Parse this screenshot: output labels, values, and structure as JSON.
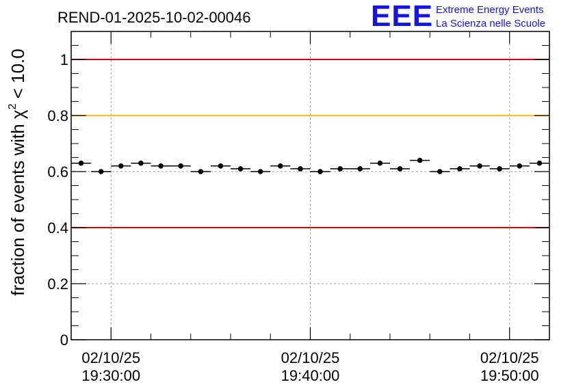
{
  "chart_data": {
    "type": "scatter",
    "title": "REND-01-2025-10-02-00046",
    "ylabel_prefix": "fraction of events with ",
    "ylabel_chi": "χ",
    "ylabel_sup": "2",
    "ylabel_suffix": " < 10.0",
    "xlabel": "",
    "x_minutes_range": [
      -7.0,
      17.0
    ],
    "ylim": [
      0,
      1.1
    ],
    "grid": true,
    "y_ticks": [
      0,
      0.2,
      0.4,
      0.6,
      0.8,
      1
    ],
    "y_tick_labels": [
      "0",
      "0.2",
      "0.4",
      "0.6",
      "0.8",
      "1"
    ],
    "x_ticks": [
      {
        "minute": -5,
        "date": "02/10/25",
        "time": "19:30:00"
      },
      {
        "minute": 5,
        "date": "02/10/25",
        "time": "19:40:00"
      },
      {
        "minute": 15,
        "date": "02/10/25",
        "time": "19:50:00"
      }
    ],
    "x_minor_minutes": [
      -3,
      -1,
      1,
      3,
      7,
      9,
      11,
      13
    ],
    "reference_lines": [
      {
        "y": 1.0,
        "color": "#dd0000"
      },
      {
        "y": 0.8,
        "color": "#ffc000"
      },
      {
        "y": 0.4,
        "color": "#dd0000"
      }
    ],
    "bin_width_minutes": 1.0,
    "series": [
      {
        "name": "fraction",
        "x_minutes": [
          -6.5,
          -5.5,
          -4.5,
          -3.5,
          -2.5,
          -1.5,
          -0.5,
          0.5,
          1.5,
          2.5,
          3.5,
          4.5,
          5.5,
          6.5,
          7.5,
          8.5,
          9.5,
          10.5,
          11.5,
          12.5,
          13.5,
          14.5,
          15.5,
          16.5
        ],
        "values": [
          0.63,
          0.6,
          0.62,
          0.63,
          0.62,
          0.62,
          0.6,
          0.62,
          0.61,
          0.6,
          0.62,
          0.61,
          0.6,
          0.61,
          0.61,
          0.63,
          0.61,
          0.64,
          0.6,
          0.61,
          0.62,
          0.61,
          0.62,
          0.63
        ],
        "errors": [
          0.006,
          0.006,
          0.006,
          0.006,
          0.006,
          0.006,
          0.006,
          0.006,
          0.006,
          0.006,
          0.006,
          0.006,
          0.006,
          0.006,
          0.006,
          0.006,
          0.006,
          0.006,
          0.006,
          0.006,
          0.006,
          0.006,
          0.006,
          0.006
        ]
      }
    ]
  },
  "logo": {
    "mark": "EEE",
    "line1": "Extreme Energy Events",
    "line2": "La Scienza nelle Scuole",
    "color": "#1414e6"
  }
}
